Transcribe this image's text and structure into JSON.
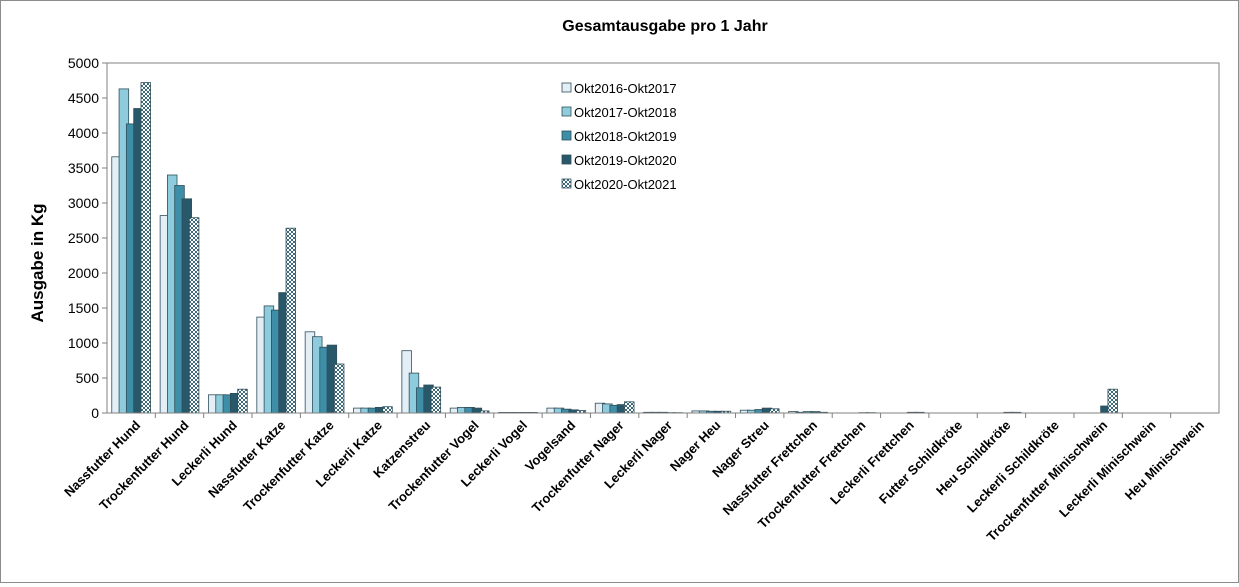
{
  "chart_data": {
    "type": "bar",
    "title": "Gesamtausgabe pro 1 Jahr",
    "xlabel": "",
    "ylabel": "Ausgabe in Kg",
    "ylim": [
      0,
      5000
    ],
    "yticks": [
      0,
      500,
      1000,
      1500,
      2000,
      2500,
      3000,
      3500,
      4000,
      4500,
      5000
    ],
    "grid": false,
    "legend": "top-center",
    "categories": [
      "Nassfutter Hund",
      "Trockenfutter Hund",
      "Leckerli Hund",
      "Nassfutter Katze",
      "Trockenfutter Katze",
      "Leckerli Katze",
      "Katzenstreu",
      "Trockenfutter Vogel",
      "Leckerli Vogel",
      "Vogelsand",
      "Trockenfutter Nager",
      "Leckerli Nager",
      "Nager Heu",
      "Nager Streu",
      "Nassfutter Frettchen",
      "Trockenfutter Frettchen",
      "Leckerli Frettchen",
      "Futter Schildkröte",
      "Heu Schildkröte",
      "Leckerli Schildkröte",
      "Trockenfutter Minischwein",
      "Leckerli Minischwein",
      "Heu Minischwein"
    ],
    "series": [
      {
        "name": "Okt2016-Okt2017",
        "color": "#e3eef5",
        "pattern": "solid",
        "values": [
          3660,
          2820,
          260,
          1370,
          1160,
          70,
          890,
          70,
          8,
          70,
          140,
          10,
          30,
          40,
          20,
          0,
          0,
          0,
          0,
          0,
          0,
          0,
          0
        ]
      },
      {
        "name": "Okt2017-Okt2018",
        "color": "#8ecbdc",
        "pattern": "solid",
        "values": [
          4630,
          3400,
          260,
          1530,
          1090,
          70,
          570,
          80,
          8,
          70,
          130,
          10,
          30,
          40,
          10,
          0,
          0,
          0,
          0,
          0,
          0,
          0,
          0
        ]
      },
      {
        "name": "Okt2018-Okt2019",
        "color": "#3d8ea6",
        "pattern": "solid",
        "values": [
          4130,
          3250,
          260,
          1470,
          940,
          70,
          360,
          80,
          8,
          55,
          110,
          10,
          25,
          50,
          20,
          0,
          0,
          0,
          0,
          0,
          0,
          0,
          0
        ]
      },
      {
        "name": "Okt2019-Okt2020",
        "color": "#28586a",
        "pattern": "solid",
        "values": [
          4350,
          3060,
          280,
          1720,
          970,
          80,
          400,
          70,
          8,
          45,
          120,
          5,
          25,
          70,
          20,
          5,
          10,
          0,
          10,
          0,
          100,
          0,
          0
        ]
      },
      {
        "name": "Okt2020-Okt2021",
        "color": "#ffffff",
        "pattern": "check",
        "values": [
          4720,
          2790,
          340,
          2640,
          700,
          90,
          370,
          30,
          8,
          35,
          160,
          5,
          25,
          60,
          10,
          5,
          10,
          0,
          10,
          0,
          340,
          0,
          0
        ]
      }
    ]
  }
}
